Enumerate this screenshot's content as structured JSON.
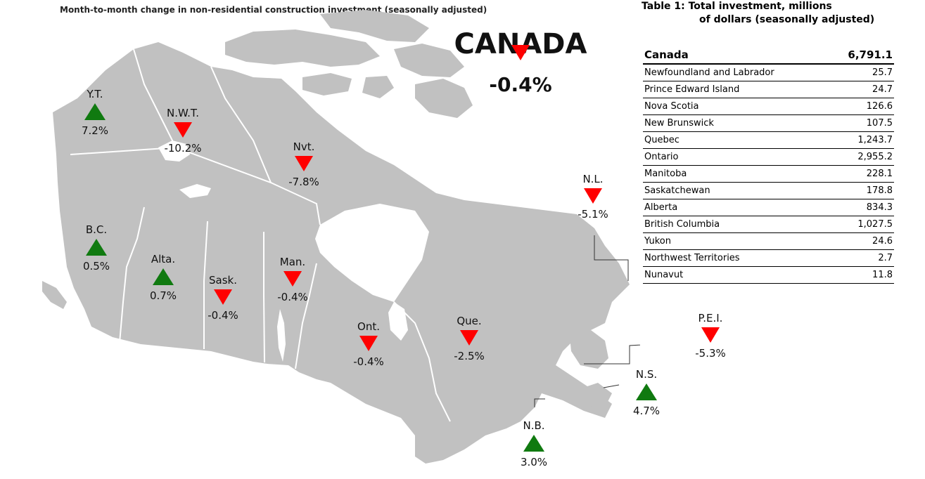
{
  "map_title": "Month-to-month change in non-residential construction investment (seasonally adjusted)",
  "colors": {
    "land": "#c1c1c1",
    "up": "#107a10",
    "down": "#ff0000",
    "border": "#ffffff"
  },
  "national": {
    "name": "CANADA",
    "change": "-0.4%",
    "direction": "down"
  },
  "provinces": [
    {
      "abbr": "Y.T.",
      "change": "7.2%",
      "direction": "up"
    },
    {
      "abbr": "N.W.T.",
      "change": "-10.2%",
      "direction": "down"
    },
    {
      "abbr": "Nvt.",
      "change": "-7.8%",
      "direction": "down"
    },
    {
      "abbr": "B.C.",
      "change": "0.5%",
      "direction": "up"
    },
    {
      "abbr": "Alta.",
      "change": "0.7%",
      "direction": "up"
    },
    {
      "abbr": "Sask.",
      "change": "-0.4%",
      "direction": "down"
    },
    {
      "abbr": "Man.",
      "change": "-0.4%",
      "direction": "down"
    },
    {
      "abbr": "Ont.",
      "change": "-0.4%",
      "direction": "down"
    },
    {
      "abbr": "Que.",
      "change": "-2.5%",
      "direction": "down"
    },
    {
      "abbr": "N.L.",
      "change": "-5.1%",
      "direction": "down"
    },
    {
      "abbr": "P.E.I.",
      "change": "-5.3%",
      "direction": "down"
    },
    {
      "abbr": "N.S.",
      "change": "4.7%",
      "direction": "up"
    },
    {
      "abbr": "N.B.",
      "change": "3.0%",
      "direction": "up"
    }
  ],
  "table": {
    "title_line1": "Table 1: Total investment, millions",
    "title_line2": "of dollars (seasonally adjusted)",
    "header": {
      "name": "Canada",
      "value": "6,791.1"
    },
    "rows": [
      {
        "name": "Newfoundland and Labrador",
        "value": "25.7"
      },
      {
        "name": "Prince Edward Island",
        "value": "24.7"
      },
      {
        "name": "Nova Scotia",
        "value": "126.6"
      },
      {
        "name": "New Brunswick",
        "value": "107.5"
      },
      {
        "name": "Quebec",
        "value": "1,243.7"
      },
      {
        "name": "Ontario",
        "value": "2,955.2"
      },
      {
        "name": "Manitoba",
        "value": "228.1"
      },
      {
        "name": "Saskatchewan",
        "value": "178.8"
      },
      {
        "name": "Alberta",
        "value": "834.3"
      },
      {
        "name": "British Columbia",
        "value": "1,027.5"
      },
      {
        "name": "Yukon",
        "value": "24.6"
      },
      {
        "name": "Northwest Territories",
        "value": "2.7"
      },
      {
        "name": "Nunavut",
        "value": "11.8"
      }
    ]
  }
}
